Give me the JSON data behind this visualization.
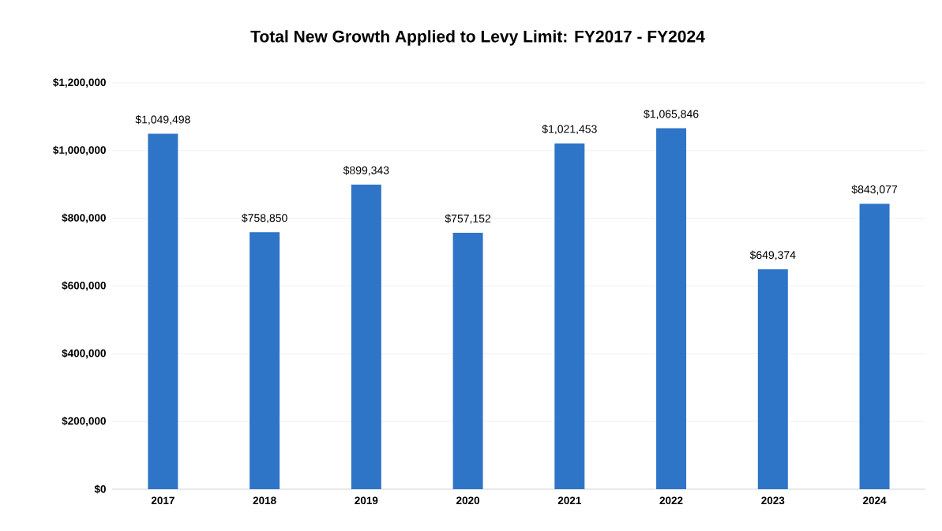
{
  "chart_data": {
    "type": "bar",
    "title": "Total New Growth Applied to Levy Limit: FY2017 - FY2024",
    "categories": [
      "2017",
      "2018",
      "2019",
      "2020",
      "2021",
      "2022",
      "2023",
      "2024"
    ],
    "values": [
      1049498,
      758850,
      899343,
      757152,
      1021453,
      1065846,
      649374,
      843077
    ],
    "value_labels": [
      "$1,049,498",
      "$758,850",
      "$899,343",
      "$757,152",
      "$1,021,453",
      "$1,065,846",
      "$649,374",
      "$843,077"
    ],
    "color": "#2e75c8",
    "ylim": [
      0,
      1200000
    ],
    "yticks": [
      {
        "value": 0,
        "label": "$0"
      },
      {
        "value": 200000,
        "label": "$200,000"
      },
      {
        "value": 400000,
        "label": "$400,000"
      },
      {
        "value": 600000,
        "label": "$600,000"
      },
      {
        "value": 800000,
        "label": "$800,000"
      },
      {
        "value": 1000000,
        "label": "$1,000,000"
      },
      {
        "value": 1200000,
        "label": "$1,200,000"
      }
    ],
    "grid": "y"
  }
}
